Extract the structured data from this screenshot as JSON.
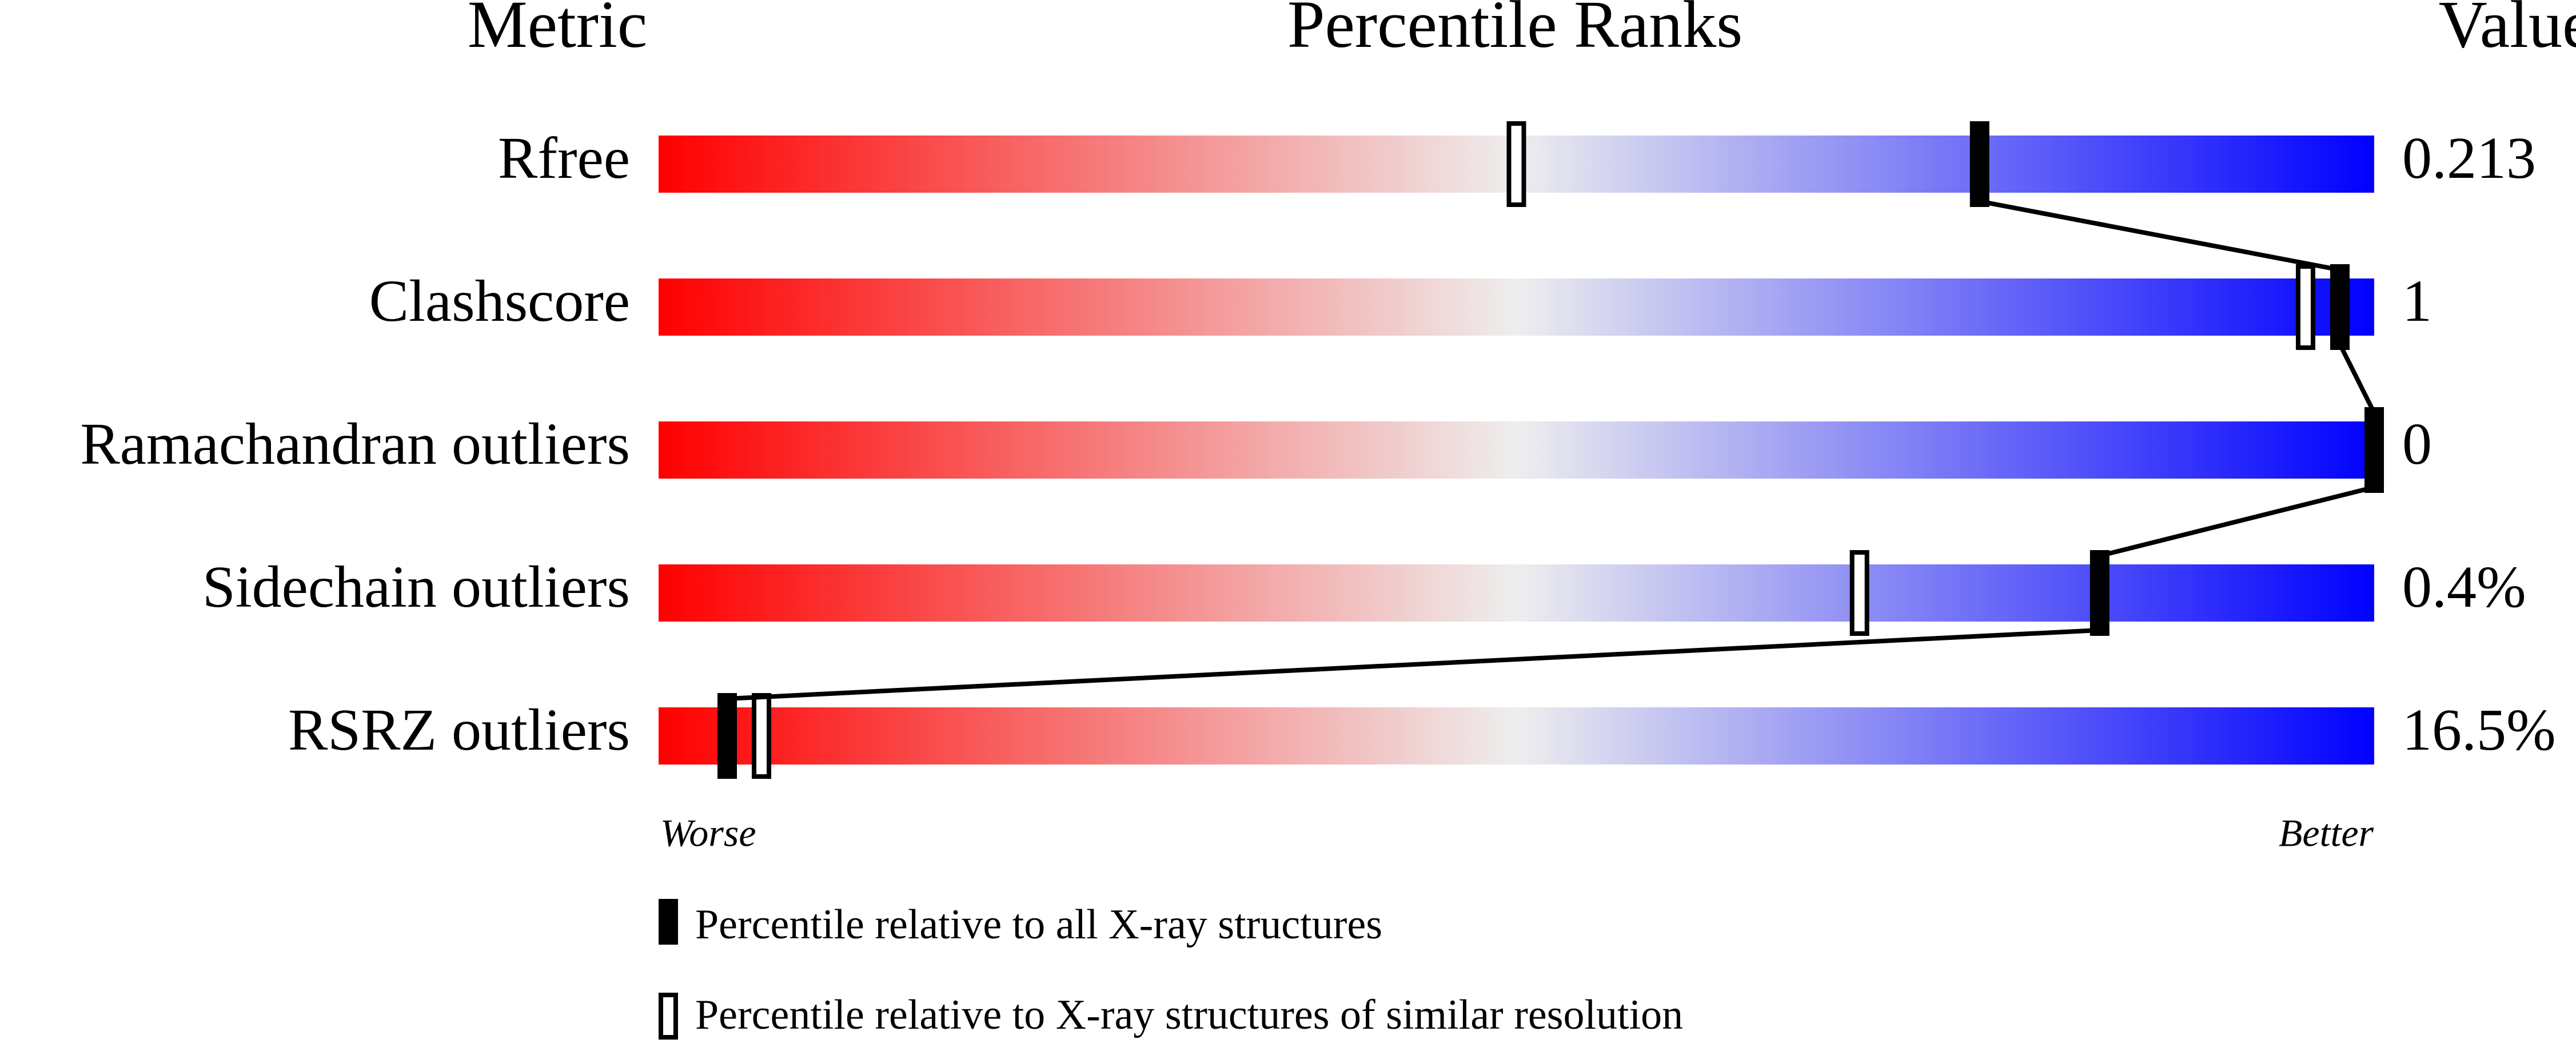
{
  "chart_data": {
    "type": "percentile",
    "headers": [
      "Metric",
      "Percentile Ranks",
      "Value"
    ],
    "categories": [
      "Rfree",
      "Clashscore",
      "Ramachandran outliers",
      "Sidechain outliers",
      "RSRZ outliers"
    ],
    "metric_values": [
      "0.213",
      "1",
      "0",
      "0.4%",
      "16.5%"
    ],
    "xlim": [
      0,
      100
    ],
    "scale_ends": [
      "Worse",
      "Better"
    ],
    "gradient_colors": [
      "#ff0000",
      "#eeeeee",
      "#0000ff"
    ],
    "series": [
      {
        "name": "Percentile relative to all X-ray structures",
        "color": "#000000",
        "style": "solid",
        "values": [
          77,
          98,
          100,
          84,
          4
        ]
      },
      {
        "name": "Percentile relative to X-ray structures of similar resolution",
        "color": "#000000",
        "style": "open",
        "values": [
          50,
          96,
          100,
          70,
          6
        ]
      }
    ]
  }
}
